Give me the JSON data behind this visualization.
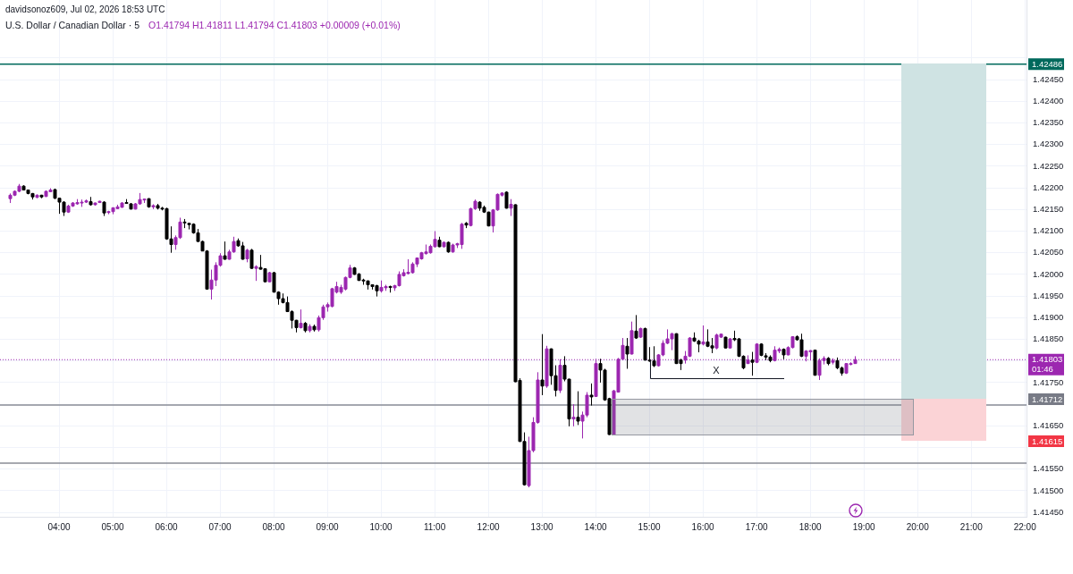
{
  "chart_data": {
    "type": "candlestick",
    "title": "U.S. Dollar / Canadian Dollar · 5",
    "subtitle": "O1.41794 H1.41811 L1.41794 C1.41803 +0.00009 (+0.01%)",
    "annotations": [
      "davidsonoz609, Jul 02, 2026 18:53 UTC",
      "X",
      "1.41712",
      "1.41615"
    ],
    "x": [
      3.0833,
      3.1667,
      3.25,
      3.3333,
      3.4167,
      3.5,
      3.5833,
      3.6667,
      3.75,
      3.8333,
      3.9167,
      4,
      4.0833,
      4.1667,
      4.25,
      4.3333,
      4.4167,
      4.5,
      4.5833,
      4.6667,
      4.75,
      4.8333,
      4.9167,
      5,
      5.0833,
      5.1667,
      5.25,
      5.3333,
      5.4167,
      5.5,
      5.5833,
      5.6667,
      5.75,
      5.8333,
      5.9167,
      6,
      6.0833,
      6.1667,
      6.25,
      6.3333,
      6.4167,
      6.5,
      6.5833,
      6.6667,
      6.75,
      6.8333,
      6.9167,
      7,
      7.0833,
      7.1667,
      7.25,
      7.3333,
      7.4167,
      7.5,
      7.5833,
      7.6667,
      7.75,
      7.8333,
      7.9167,
      8,
      8.0833,
      8.1667,
      8.25,
      8.3333,
      8.4167,
      8.5,
      8.5833,
      8.6667,
      8.75,
      8.8333,
      8.9167,
      9,
      9.0833,
      9.1667,
      9.25,
      9.3333,
      9.4167,
      9.5,
      9.5833,
      9.6667,
      9.75,
      9.8333,
      9.9167,
      10,
      10.0833,
      10.1667,
      10.25,
      10.3333,
      10.4167,
      10.5,
      10.5833,
      10.6667,
      10.75,
      10.8333,
      10.9167,
      11,
      11.0833,
      11.1667,
      11.25,
      11.3333,
      11.4167,
      11.5,
      11.5833,
      11.6667,
      11.75,
      11.8333,
      11.9167,
      12,
      12.0833,
      12.1667,
      12.25,
      12.3333,
      12.4167,
      12.5,
      12.5833,
      12.6667,
      12.75,
      12.8333,
      12.9167,
      13,
      13.0833,
      13.1667,
      13.25,
      13.3333,
      13.4167,
      13.5,
      13.5833,
      13.6667,
      13.75,
      13.8333,
      13.9167,
      14,
      14.0833,
      14.1667,
      14.25,
      14.3333,
      14.4167,
      14.5,
      14.5833,
      14.6667,
      14.75,
      14.8333,
      14.9167,
      15,
      15.0833,
      15.1667,
      15.25,
      15.3333,
      15.4167,
      15.5,
      15.5833,
      15.6667,
      15.75,
      15.8333,
      15.9167,
      16,
      16.0833,
      16.1667,
      16.25,
      16.3333,
      16.4167,
      16.5,
      16.5833,
      16.6667,
      16.75,
      16.8333,
      16.9167,
      17,
      17.0833,
      17.1667,
      17.25,
      17.3333,
      17.4167,
      17.5,
      17.5833,
      17.6667,
      17.75,
      17.8333,
      17.9167,
      18,
      18.0833,
      18.1667,
      18.25,
      18.3333,
      18.4167,
      18.5,
      18.5833,
      18.6667,
      18.75,
      18.8333
    ],
    "ohlc": [
      [
        1.42175,
        1.42187,
        1.42165,
        1.42183
      ],
      [
        1.42183,
        1.42194,
        1.42181,
        1.42192
      ],
      [
        1.42192,
        1.42209,
        1.4219,
        1.42204
      ],
      [
        1.42204,
        1.42206,
        1.42194,
        1.42195
      ],
      [
        1.42195,
        1.42196,
        1.42185,
        1.42187
      ],
      [
        1.42187,
        1.42188,
        1.42173,
        1.42179
      ],
      [
        1.42178,
        1.42185,
        1.42176,
        1.42183
      ],
      [
        1.42183,
        1.42184,
        1.42176,
        1.42179
      ],
      [
        1.4218,
        1.42194,
        1.42179,
        1.42192
      ],
      [
        1.42191,
        1.42199,
        1.4219,
        1.42195
      ],
      [
        1.42196,
        1.42198,
        1.42174,
        1.42176
      ],
      [
        1.42176,
        1.42177,
        1.4214,
        1.42167
      ],
      [
        1.42167,
        1.42169,
        1.42135,
        1.42144
      ],
      [
        1.42144,
        1.42161,
        1.42142,
        1.42158
      ],
      [
        1.42158,
        1.42167,
        1.42156,
        1.42165
      ],
      [
        1.42163,
        1.42174,
        1.42161,
        1.42166
      ],
      [
        1.42165,
        1.42173,
        1.42156,
        1.42167
      ],
      [
        1.42167,
        1.42173,
        1.42165,
        1.4217
      ],
      [
        1.42168,
        1.42179,
        1.42159,
        1.42161
      ],
      [
        1.42161,
        1.42166,
        1.42159,
        1.42165
      ],
      [
        1.42166,
        1.4217,
        1.42165,
        1.42169
      ],
      [
        1.42167,
        1.42169,
        1.42135,
        1.42142
      ],
      [
        1.42143,
        1.42147,
        1.42139,
        1.42145
      ],
      [
        1.42145,
        1.42155,
        1.42139,
        1.42154
      ],
      [
        1.42152,
        1.42161,
        1.42151,
        1.42156
      ],
      [
        1.42155,
        1.42167,
        1.42154,
        1.42165
      ],
      [
        1.42166,
        1.42174,
        1.42163,
        1.42164
      ],
      [
        1.42163,
        1.42165,
        1.4215,
        1.42151
      ],
      [
        1.42151,
        1.42165,
        1.4215,
        1.42163
      ],
      [
        1.42163,
        1.42188,
        1.42161,
        1.42173
      ],
      [
        1.42172,
        1.42175,
        1.42165,
        1.42174
      ],
      [
        1.42175,
        1.42176,
        1.42154,
        1.42156
      ],
      [
        1.42156,
        1.42162,
        1.42151,
        1.42159
      ],
      [
        1.42159,
        1.42163,
        1.4215,
        1.42153
      ],
      [
        1.42153,
        1.42156,
        1.42148,
        1.42152
      ],
      [
        1.42152,
        1.42154,
        1.4208,
        1.42082
      ],
      [
        1.42082,
        1.42111,
        1.4205,
        1.42069
      ],
      [
        1.42069,
        1.4209,
        1.42057,
        1.42085
      ],
      [
        1.42085,
        1.42131,
        1.42082,
        1.42121
      ],
      [
        1.42121,
        1.42128,
        1.42107,
        1.42119
      ],
      [
        1.42118,
        1.42119,
        1.42104,
        1.42115
      ],
      [
        1.42116,
        1.42118,
        1.42094,
        1.42096
      ],
      [
        1.42096,
        1.42105,
        1.42075,
        1.42076
      ],
      [
        1.42076,
        1.42078,
        1.42054,
        1.42054
      ],
      [
        1.42054,
        1.42056,
        1.41965,
        1.41966
      ],
      [
        1.41966,
        1.42011,
        1.41942,
        1.41987
      ],
      [
        1.41987,
        1.42028,
        1.41973,
        1.42021
      ],
      [
        1.42021,
        1.42049,
        1.42018,
        1.42043
      ],
      [
        1.42043,
        1.42076,
        1.42034,
        1.42035
      ],
      [
        1.42035,
        1.42057,
        1.42034,
        1.42052
      ],
      [
        1.42052,
        1.42087,
        1.4205,
        1.42076
      ],
      [
        1.42078,
        1.42083,
        1.42064,
        1.42066
      ],
      [
        1.42066,
        1.42075,
        1.42034,
        1.42035
      ],
      [
        1.42036,
        1.42059,
        1.42028,
        1.42056
      ],
      [
        1.42056,
        1.42059,
        1.42013,
        1.42014
      ],
      [
        1.42014,
        1.42021,
        1.41985,
        1.42018
      ],
      [
        1.42016,
        1.42045,
        1.42011,
        1.42012
      ],
      [
        1.42013,
        1.42014,
        1.41982,
        1.41983
      ],
      [
        1.41983,
        1.42006,
        1.41982,
        1.42004
      ],
      [
        1.42004,
        1.42006,
        1.41958,
        1.41959
      ],
      [
        1.41959,
        1.41961,
        1.4193,
        1.41944
      ],
      [
        1.41944,
        1.41956,
        1.41933,
        1.41935
      ],
      [
        1.41935,
        1.41949,
        1.41913,
        1.41914
      ],
      [
        1.41914,
        1.41917,
        1.41875,
        1.41894
      ],
      [
        1.41894,
        1.41895,
        1.41866,
        1.41877
      ],
      [
        1.41877,
        1.41919,
        1.41875,
        1.41887
      ],
      [
        1.41887,
        1.4189,
        1.41866,
        1.4187
      ],
      [
        1.4187,
        1.41885,
        1.41866,
        1.4188
      ],
      [
        1.4188,
        1.41884,
        1.41868,
        1.41872
      ],
      [
        1.41872,
        1.41905,
        1.41868,
        1.419
      ],
      [
        1.419,
        1.4193,
        1.41895,
        1.41925
      ],
      [
        1.41925,
        1.41935,
        1.41914,
        1.4193
      ],
      [
        1.41926,
        1.41969,
        1.41924,
        1.41967
      ],
      [
        1.41959,
        1.41983,
        1.41956,
        1.41972
      ],
      [
        1.41959,
        1.41976,
        1.41955,
        1.4197
      ],
      [
        1.41966,
        1.41995,
        1.41963,
        1.41993
      ],
      [
        1.41993,
        1.42022,
        1.41991,
        1.42015
      ],
      [
        1.42015,
        1.42017,
        1.41999,
        1.42
      ],
      [
        1.42001,
        1.42003,
        1.41985,
        1.41986
      ],
      [
        1.41987,
        1.4199,
        1.41976,
        1.41985
      ],
      [
        1.41985,
        1.41986,
        1.41965,
        1.41976
      ],
      [
        1.41976,
        1.41977,
        1.41965,
        1.41972
      ],
      [
        1.41974,
        1.41976,
        1.41949,
        1.41962
      ],
      [
        1.41962,
        1.41986,
        1.41958,
        1.4197
      ],
      [
        1.41969,
        1.41976,
        1.41962,
        1.41972
      ],
      [
        1.41972,
        1.41974,
        1.41958,
        1.4197
      ],
      [
        1.41969,
        1.41976,
        1.41962,
        1.41974
      ],
      [
        1.41974,
        1.42007,
        1.41972,
        1.42
      ],
      [
        1.41997,
        1.42012,
        1.41995,
        1.42004
      ],
      [
        1.42002,
        1.42035,
        1.42,
        1.42005
      ],
      [
        1.42004,
        1.42028,
        1.42002,
        1.42024
      ],
      [
        1.42024,
        1.42039,
        1.42017,
        1.42038
      ],
      [
        1.42036,
        1.42052,
        1.42034,
        1.4205
      ],
      [
        1.42048,
        1.42069,
        1.42046,
        1.42052
      ],
      [
        1.4205,
        1.42069,
        1.42048,
        1.42065
      ],
      [
        1.42064,
        1.421,
        1.42062,
        1.42081
      ],
      [
        1.42079,
        1.42087,
        1.42063,
        1.42064
      ],
      [
        1.42064,
        1.42076,
        1.42062,
        1.42074
      ],
      [
        1.42074,
        1.42076,
        1.4205,
        1.42052
      ],
      [
        1.42052,
        1.42071,
        1.4205,
        1.42068
      ],
      [
        1.42068,
        1.42073,
        1.42061,
        1.42071
      ],
      [
        1.42069,
        1.42119,
        1.42059,
        1.42116
      ],
      [
        1.42118,
        1.42121,
        1.42107,
        1.42114
      ],
      [
        1.42113,
        1.42154,
        1.42111,
        1.42152
      ],
      [
        1.42152,
        1.42173,
        1.42149,
        1.42169
      ],
      [
        1.42167,
        1.42169,
        1.42147,
        1.42153
      ],
      [
        1.42155,
        1.42159,
        1.42142,
        1.42144
      ],
      [
        1.42144,
        1.42145,
        1.42111,
        1.42112
      ],
      [
        1.42112,
        1.42151,
        1.42097,
        1.42149
      ],
      [
        1.42149,
        1.42187,
        1.42147,
        1.42185
      ],
      [
        1.42183,
        1.4219,
        1.4218,
        1.42188
      ],
      [
        1.4219,
        1.42192,
        1.42152,
        1.42153
      ],
      [
        1.42153,
        1.42174,
        1.42135,
        1.42162
      ],
      [
        1.42161,
        1.42162,
        1.41751,
        1.41752
      ],
      [
        1.41755,
        1.4176,
        1.41613,
        1.41614
      ],
      [
        1.41614,
        1.41635,
        1.41512,
        1.41514
      ],
      [
        1.41512,
        1.41625,
        1.41508,
        1.41593
      ],
      [
        1.41593,
        1.4167,
        1.41589,
        1.41658
      ],
      [
        1.41658,
        1.41774,
        1.41655,
        1.41756
      ],
      [
        1.41756,
        1.41862,
        1.41721,
        1.41742
      ],
      [
        1.41742,
        1.41835,
        1.41738,
        1.41828
      ],
      [
        1.41828,
        1.41829,
        1.41745,
        1.41766
      ],
      [
        1.41766,
        1.4179,
        1.41718,
        1.41732
      ],
      [
        1.41732,
        1.41804,
        1.41726,
        1.4179
      ],
      [
        1.4179,
        1.41811,
        1.41753,
        1.41758
      ],
      [
        1.41758,
        1.41759,
        1.41649,
        1.41666
      ],
      [
        1.41666,
        1.417,
        1.41649,
        1.4167
      ],
      [
        1.4167,
        1.4173,
        1.41652,
        1.41661
      ],
      [
        1.41661,
        1.41683,
        1.41621,
        1.41675
      ],
      [
        1.41675,
        1.41728,
        1.4167,
        1.41721
      ],
      [
        1.41721,
        1.41748,
        1.41697,
        1.41717
      ],
      [
        1.41718,
        1.41805,
        1.41717,
        1.41794
      ],
      [
        1.41794,
        1.41805,
        1.4175,
        1.41779
      ],
      [
        1.41779,
        1.41782,
        1.41708,
        1.4171
      ],
      [
        1.41713,
        1.41715,
        1.41629,
        1.4163
      ],
      [
        1.4163,
        1.41733,
        1.41629,
        1.41731
      ],
      [
        1.41728,
        1.41807,
        1.41727,
        1.41804
      ],
      [
        1.41804,
        1.41853,
        1.41802,
        1.41836
      ],
      [
        1.41834,
        1.41853,
        1.41782,
        1.41816
      ],
      [
        1.41816,
        1.41891,
        1.41815,
        1.4187
      ],
      [
        1.41869,
        1.41906,
        1.41851,
        1.41853
      ],
      [
        1.41855,
        1.41877,
        1.41853,
        1.41875
      ],
      [
        1.41875,
        1.41877,
        1.41801,
        1.41802
      ],
      [
        1.41802,
        1.41832,
        1.41798,
        1.418
      ],
      [
        1.418,
        1.41834,
        1.41786,
        1.41789
      ],
      [
        1.41789,
        1.41816,
        1.41787,
        1.41814
      ],
      [
        1.41814,
        1.41848,
        1.41811,
        1.41841
      ],
      [
        1.41841,
        1.41873,
        1.41839,
        1.41851
      ],
      [
        1.41851,
        1.41865,
        1.41825,
        1.41863
      ],
      [
        1.41863,
        1.41864,
        1.41793,
        1.41794
      ],
      [
        1.41802,
        1.41805,
        1.41779,
        1.41794
      ],
      [
        1.41802,
        1.41823,
        1.41794,
        1.41811
      ],
      [
        1.41811,
        1.41855,
        1.41809,
        1.41853
      ],
      [
        1.41853,
        1.41866,
        1.41844,
        1.41846
      ],
      [
        1.41846,
        1.41849,
        1.4182,
        1.41839
      ],
      [
        1.41839,
        1.41882,
        1.41836,
        1.41844
      ],
      [
        1.41844,
        1.41873,
        1.41832,
        1.41834
      ],
      [
        1.41835,
        1.41853,
        1.41818,
        1.4183
      ],
      [
        1.4183,
        1.41863,
        1.41827,
        1.4186
      ],
      [
        1.41855,
        1.41863,
        1.41853,
        1.41862
      ],
      [
        1.41855,
        1.41856,
        1.41829,
        1.4183
      ],
      [
        1.4183,
        1.41853,
        1.41829,
        1.41851
      ],
      [
        1.41852,
        1.4187,
        1.41846,
        1.41849
      ],
      [
        1.41851,
        1.41853,
        1.41809,
        1.41811
      ],
      [
        1.41811,
        1.41813,
        1.41781,
        1.41784
      ],
      [
        1.41794,
        1.41813,
        1.41793,
        1.41802
      ],
      [
        1.41802,
        1.41821,
        1.41766,
        1.41797
      ],
      [
        1.41797,
        1.41841,
        1.41795,
        1.41839
      ],
      [
        1.41839,
        1.41841,
        1.41811,
        1.41813
      ],
      [
        1.41812,
        1.41818,
        1.41802,
        1.41809
      ],
      [
        1.41809,
        1.41813,
        1.41797,
        1.41801
      ],
      [
        1.41801,
        1.41834,
        1.41799,
        1.41825
      ],
      [
        1.41823,
        1.41831,
        1.41818,
        1.41827
      ],
      [
        1.41827,
        1.41829,
        1.41804,
        1.41814
      ],
      [
        1.41814,
        1.41834,
        1.41813,
        1.41831
      ],
      [
        1.41831,
        1.41857,
        1.41829,
        1.41856
      ],
      [
        1.41856,
        1.41859,
        1.41847,
        1.41849
      ],
      [
        1.41849,
        1.41863,
        1.41809,
        1.41811
      ],
      [
        1.41811,
        1.41825,
        1.41799,
        1.41823
      ],
      [
        1.41821,
        1.41825,
        1.41801,
        1.41824
      ],
      [
        1.41825,
        1.41826,
        1.41766,
        1.41767
      ],
      [
        1.41767,
        1.41806,
        1.41756,
        1.41801
      ],
      [
        1.41801,
        1.41811,
        1.41792,
        1.41806
      ],
      [
        1.41806,
        1.41809,
        1.4179,
        1.41794
      ],
      [
        1.41797,
        1.41806,
        1.41792,
        1.41801
      ],
      [
        1.41801,
        1.41808,
        1.41781,
        1.41784
      ],
      [
        1.41784,
        1.41787,
        1.41766,
        1.41772
      ],
      [
        1.41772,
        1.41795,
        1.4177,
        1.41794
      ],
      [
        1.41792,
        1.41797,
        1.4179,
        1.41794
      ],
      [
        1.41794,
        1.41811,
        1.41794,
        1.41803
      ]
    ],
    "colors": [
      "#9c27b0",
      "#9c27b0",
      "#9c27b0",
      "#000000",
      "#000000",
      "#000000",
      "#9c27b0",
      "#000000",
      "#9c27b0",
      "#9c27b0",
      "#000000",
      "#000000",
      "#000000",
      "#9c27b0",
      "#9c27b0",
      "#9c27b0",
      "#9c27b0",
      "#9c27b0",
      "#000000",
      "#9c27b0",
      "#9c27b0",
      "#000000",
      "#9c27b0",
      "#9c27b0",
      "#9c27b0",
      "#9c27b0",
      "#000000",
      "#000000",
      "#9c27b0",
      "#9c27b0",
      "#9c27b0",
      "#000000",
      "#9c27b0",
      "#000000",
      "#000000",
      "#000000",
      "#000000",
      "#9c27b0",
      "#9c27b0",
      "#000000",
      "#000000",
      "#000000",
      "#000000",
      "#000000",
      "#000000",
      "#9c27b0",
      "#9c27b0",
      "#9c27b0",
      "#000000",
      "#9c27b0",
      "#9c27b0",
      "#000000",
      "#000000",
      "#9c27b0",
      "#000000",
      "#9c27b0",
      "#000000",
      "#000000",
      "#9c27b0",
      "#000000",
      "#000000",
      "#000000",
      "#000000",
      "#000000",
      "#000000",
      "#9c27b0",
      "#000000",
      "#9c27b0",
      "#000000",
      "#9c27b0",
      "#9c27b0",
      "#9c27b0",
      "#9c27b0",
      "#9c27b0",
      "#9c27b0",
      "#9c27b0",
      "#9c27b0",
      "#000000",
      "#000000",
      "#000000",
      "#000000",
      "#000000",
      "#000000",
      "#9c27b0",
      "#9c27b0",
      "#000000",
      "#9c27b0",
      "#9c27b0",
      "#9c27b0",
      "#9c27b0",
      "#9c27b0",
      "#9c27b0",
      "#9c27b0",
      "#9c27b0",
      "#9c27b0",
      "#9c27b0",
      "#000000",
      "#9c27b0",
      "#000000",
      "#9c27b0",
      "#9c27b0",
      "#9c27b0",
      "#000000",
      "#9c27b0",
      "#9c27b0",
      "#000000",
      "#000000",
      "#000000",
      "#9c27b0",
      "#9c27b0",
      "#9c27b0",
      "#000000",
      "#9c27b0",
      "#000000",
      "#000000",
      "#000000",
      "#9c27b0",
      "#9c27b0",
      "#9c27b0",
      "#000000",
      "#9c27b0",
      "#000000",
      "#000000",
      "#9c27b0",
      "#000000",
      "#000000",
      "#9c27b0",
      "#000000",
      "#9c27b0",
      "#9c27b0",
      "#000000",
      "#9c27b0",
      "#000000",
      "#000000",
      "#000000",
      "#9c27b0",
      "#9c27b0",
      "#9c27b0",
      "#000000",
      "#9c27b0",
      "#000000",
      "#9c27b0",
      "#000000",
      "#000000",
      "#000000",
      "#9c27b0",
      "#9c27b0",
      "#9c27b0",
      "#9c27b0",
      "#000000",
      "#000000",
      "#9c27b0",
      "#9c27b0",
      "#000000",
      "#000000",
      "#9c27b0",
      "#000000",
      "#000000",
      "#9c27b0",
      "#9c27b0",
      "#000000",
      "#9c27b0",
      "#000000",
      "#000000",
      "#000000",
      "#9c27b0",
      "#000000",
      "#9c27b0",
      "#000000",
      "#000000",
      "#000000",
      "#9c27b0",
      "#9c27b0",
      "#000000",
      "#9c27b0",
      "#9c27b0",
      "#000000",
      "#000000",
      "#9c27b0",
      "#9c27b0",
      "#000000",
      "#9c27b0",
      "#9c27b0",
      "#000000",
      "#9c27b0",
      "#000000",
      "#000000",
      "#9c27b0",
      "#9c27b0",
      "#9c27b0"
    ],
    "xlim": [
      2.9,
      22.03
    ],
    "xticks": [
      {
        "value": 4,
        "label": "04:00"
      },
      {
        "value": 5,
        "label": "05:00"
      },
      {
        "value": 6,
        "label": "06:00"
      },
      {
        "value": 7,
        "label": "07:00"
      },
      {
        "value": 8,
        "label": "08:00"
      },
      {
        "value": 9,
        "label": "09:00"
      },
      {
        "value": 10,
        "label": "10:00"
      },
      {
        "value": 11,
        "label": "11:00"
      },
      {
        "value": 12,
        "label": "12:00"
      },
      {
        "value": 13,
        "label": "13:00"
      },
      {
        "value": 14,
        "label": "14:00"
      },
      {
        "value": 15,
        "label": "15:00"
      },
      {
        "value": 16,
        "label": "16:00"
      },
      {
        "value": 17,
        "label": "17:00"
      },
      {
        "value": 18,
        "label": "18:00"
      },
      {
        "value": 19,
        "label": "19:00"
      },
      {
        "value": 20,
        "label": "20:00"
      },
      {
        "value": 21,
        "label": "21:00"
      },
      {
        "value": 22,
        "label": "22:00"
      }
    ],
    "ylim": [
      1.4144,
      1.42634
    ],
    "yticks": [
      {
        "value": 1.4145,
        "label": "1.41450"
      },
      {
        "value": 1.415,
        "label": "1.41500"
      },
      {
        "value": 1.4155,
        "label": "1.41550"
      },
      {
        "value": 1.416,
        "label": null
      },
      {
        "value": 1.4165,
        "label": "1.41650"
      },
      {
        "value": 1.417,
        "label": null
      },
      {
        "value": 1.4175,
        "label": "1.41750"
      },
      {
        "value": 1.418,
        "label": null
      },
      {
        "value": 1.4185,
        "label": "1.41850"
      },
      {
        "value": 1.419,
        "label": "1.41900"
      },
      {
        "value": 1.4195,
        "label": "1.41950"
      },
      {
        "value": 1.42,
        "label": "1.42000"
      },
      {
        "value": 1.4205,
        "label": "1.42050"
      },
      {
        "value": 1.421,
        "label": "1.42100"
      },
      {
        "value": 1.4215,
        "label": "1.42150"
      },
      {
        "value": 1.422,
        "label": "1.42200"
      },
      {
        "value": 1.4225,
        "label": "1.42250"
      },
      {
        "value": 1.423,
        "label": "1.42300"
      },
      {
        "value": 1.4235,
        "label": "1.42350"
      },
      {
        "value": 1.424,
        "label": "1.42400"
      },
      {
        "value": 1.4245,
        "label": "1.42450"
      },
      {
        "value": 1.425,
        "label": null
      }
    ],
    "grid": true,
    "ref_lines": [
      {
        "axis": "y",
        "value": 1.42486,
        "label": "1.42486",
        "color": "#00695c"
      },
      {
        "axis": "y",
        "value": 1.41698,
        "color": "#8a8d96"
      },
      {
        "axis": "y",
        "value": 1.41564,
        "color": "#8a8d96"
      },
      {
        "axis": "y",
        "value": 1.41803,
        "label": "1.41803\n01:46",
        "color": "#9c27b0",
        "line_style": "dotted"
      }
    ]
  }
}
